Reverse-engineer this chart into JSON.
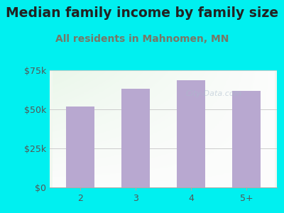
{
  "title": "Median family income by family size",
  "subtitle": "All residents in Mahnomen, MN",
  "categories": [
    "2",
    "3",
    "4",
    "5+"
  ],
  "values": [
    52000,
    63000,
    68500,
    62000
  ],
  "bar_color": "#b8a8d0",
  "background_outer": "#00f0f0",
  "ylim": [
    0,
    75000
  ],
  "yticks": [
    0,
    25000,
    50000,
    75000
  ],
  "ytick_labels": [
    "$0",
    "$25k",
    "$50k",
    "$75k"
  ],
  "title_fontsize": 13.5,
  "subtitle_fontsize": 10,
  "tick_fontsize": 9,
  "title_color": "#222222",
  "subtitle_color": "#777766",
  "tick_color": "#555555",
  "watermark": "City-Data.com"
}
